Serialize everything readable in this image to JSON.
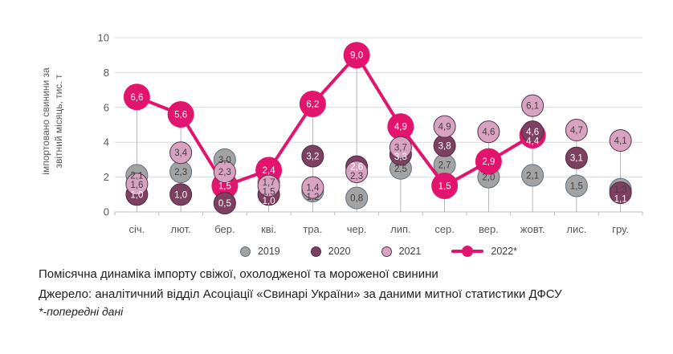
{
  "panel": {
    "caption": "Помісячна динаміка імпорту свіжої, охолодженої та мороженої свинини",
    "source": "Джерело: аналітичний відділ Асоціації «Свинарі України» за даними митної статистики ДФСУ",
    "footnote": "*-попередні дані"
  },
  "chart_data": {
    "type": "line",
    "title": "",
    "ylabel": "імпортовано свинини за звітний місяць, тис. т",
    "ylabel_lines": [
      "імпортовано свинини за",
      "звітний місяць, тис. т"
    ],
    "xlabel": "",
    "ylim": [
      0,
      10
    ],
    "yticks": [
      0,
      2,
      4,
      6,
      8,
      10
    ],
    "grid": true,
    "legend_position": "bottom",
    "decimal_separator": ",",
    "categories": [
      "січ.",
      "лют.",
      "бер.",
      "кві.",
      "тра.",
      "чер.",
      "лип.",
      "сер.",
      "вер.",
      "жовт.",
      "лис.",
      "гру."
    ],
    "series": [
      {
        "name": "2019",
        "marker": "circle",
        "color": "#a3a3a3",
        "border_color": "#5b7083",
        "label_color": "#3f3f3f",
        "values": [
          2.1,
          2.3,
          3.0,
          1.7,
          1.2,
          0.8,
          2.5,
          2.7,
          2.0,
          2.1,
          1.5,
          1.3
        ]
      },
      {
        "name": "2020",
        "marker": "circle",
        "color": "#7d4060",
        "border_color": "#512a43",
        "label_color": "#ffffff",
        "values": [
          1.0,
          1.0,
          0.5,
          1.0,
          3.2,
          2.6,
          3.3,
          3.8,
          null,
          4.6,
          3.1,
          1.1
        ]
      },
      {
        "name": "2021",
        "marker": "circle",
        "color": "#d7a3c1",
        "border_color": "#5a3350",
        "label_color": "#3f3f3f",
        "values": [
          1.6,
          3.4,
          2.3,
          1.5,
          1.4,
          2.3,
          3.7,
          4.9,
          4.6,
          6.1,
          4.7,
          4.1
        ]
      },
      {
        "name": "2022*",
        "marker": "line-circle",
        "color": "#e3146e",
        "border_color": "#e3146e",
        "label_color": "#ffffff",
        "values": [
          6.6,
          5.6,
          1.5,
          2.4,
          6.2,
          9.0,
          4.9,
          1.5,
          2.9,
          4.4,
          null,
          null
        ]
      }
    ],
    "colors": {
      "grid": "#d9d9d9",
      "axis": "#bfbfbf",
      "leader_line": "#a6a6a6",
      "tick_text": "#595959"
    }
  }
}
